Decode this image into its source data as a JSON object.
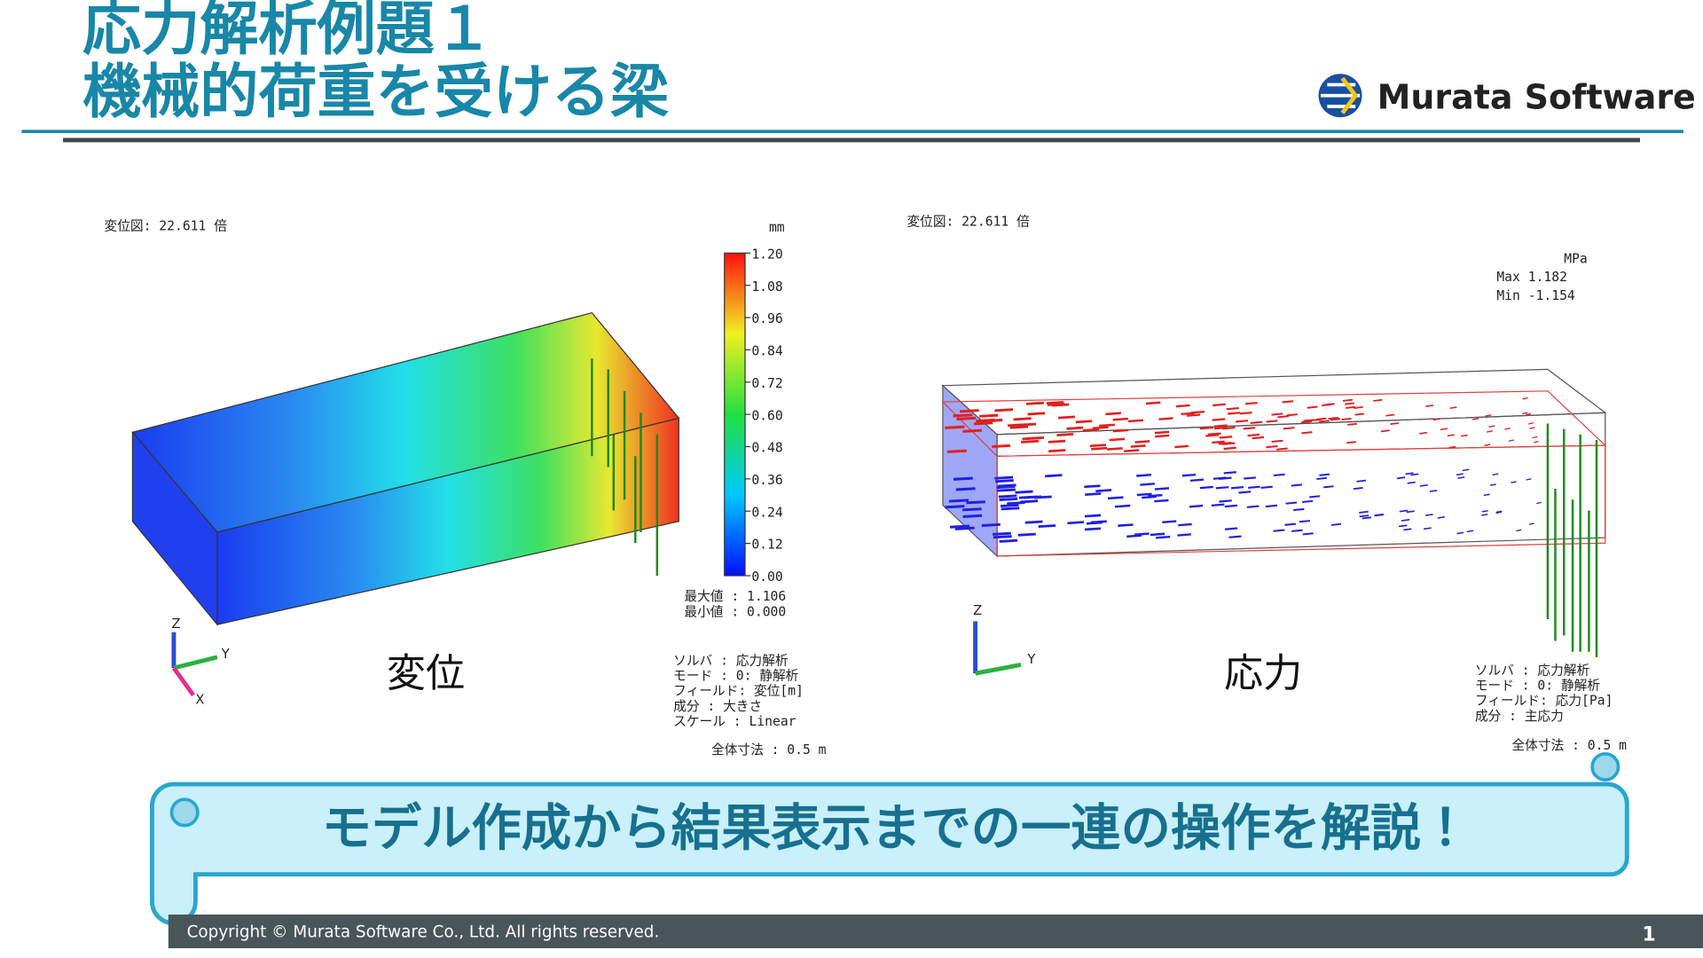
{
  "header": {
    "title_lines": [
      "応力解析例題１",
      "機械的荷重を受ける梁"
    ],
    "logo": "Murata Software"
  },
  "left_panel": {
    "scale_note": "変位図: 22.611 倍",
    "unit": "mm",
    "colorbar_labels": [
      "1.20",
      "1.08",
      "0.96",
      "0.84",
      "0.72",
      "0.60",
      "0.48",
      "0.36",
      "0.24",
      "0.12",
      "0.00"
    ],
    "minmax": [
      "最大値 : 1.106",
      "最小値 : 0.000"
    ],
    "caption": "変位",
    "info": [
      "ソルバ    : 応力解析",
      "モード    : 0: 静解析",
      "フィールド: 変位[m]",
      "成分      : 大きさ",
      "スケール  : Linear"
    ],
    "size": "全体寸法 : 0.5 m",
    "axes": [
      "Z",
      "Y",
      "X"
    ]
  },
  "right_panel": {
    "scale_note": "変位図: 22.611 倍",
    "unit": "MPa",
    "max": "Max  1.182",
    "min": "Min -1.154",
    "caption": "応力",
    "info": [
      "ソルバ    : 応力解析",
      "モード    : 0: 静解析",
      "フィールド: 応力[Pa]",
      "成分      : 主応力"
    ],
    "size": "全体寸法 : 0.5 m",
    "axes": [
      "Z",
      "Y"
    ]
  },
  "banner": "モデル作成から結果表示までの一連の操作を解説！",
  "footer": {
    "copyright": "Copyright © Murata Software Co., Ltd. All rights reserved.",
    "page": "1"
  }
}
